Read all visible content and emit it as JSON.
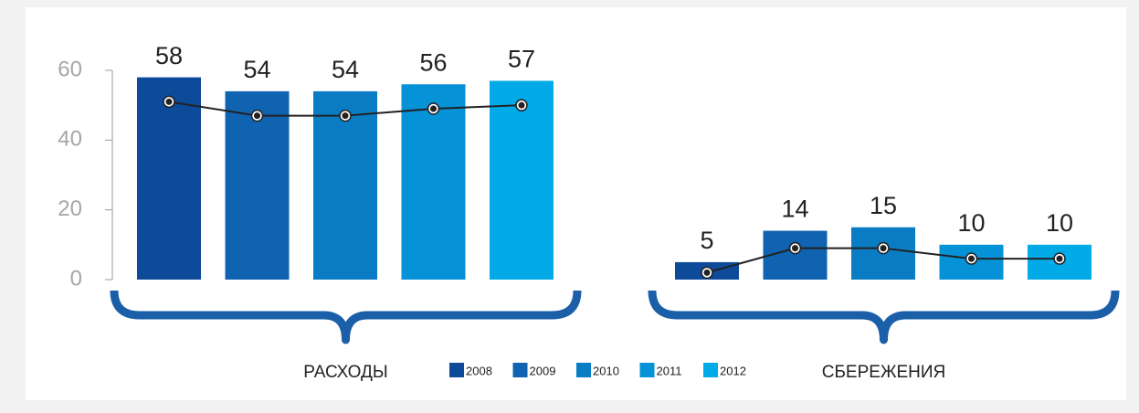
{
  "chart_data": {
    "type": "bar",
    "categories": [
      "РАСХОДЫ",
      "СБЕРЕЖЕНИЯ"
    ],
    "series": [
      {
        "name": "2008",
        "color": "#0d4a9a",
        "values": [
          58,
          5
        ]
      },
      {
        "name": "2009",
        "color": "#0f63b0",
        "values": [
          54,
          14
        ]
      },
      {
        "name": "2010",
        "color": "#0a7cc4",
        "values": [
          54,
          15
        ]
      },
      {
        "name": "2011",
        "color": "#0592d6",
        "values": [
          56,
          10
        ]
      },
      {
        "name": "2012",
        "color": "#03aae8",
        "values": [
          57,
          10
        ]
      }
    ],
    "line": {
      "color": "#222222",
      "values": [
        [
          51,
          47,
          47,
          49,
          50
        ],
        [
          2,
          9,
          9,
          6,
          6
        ]
      ]
    },
    "brace_color": "#1a5fa8",
    "ylim": [
      0,
      60
    ],
    "yticks": [
      0,
      20,
      40,
      60
    ]
  }
}
